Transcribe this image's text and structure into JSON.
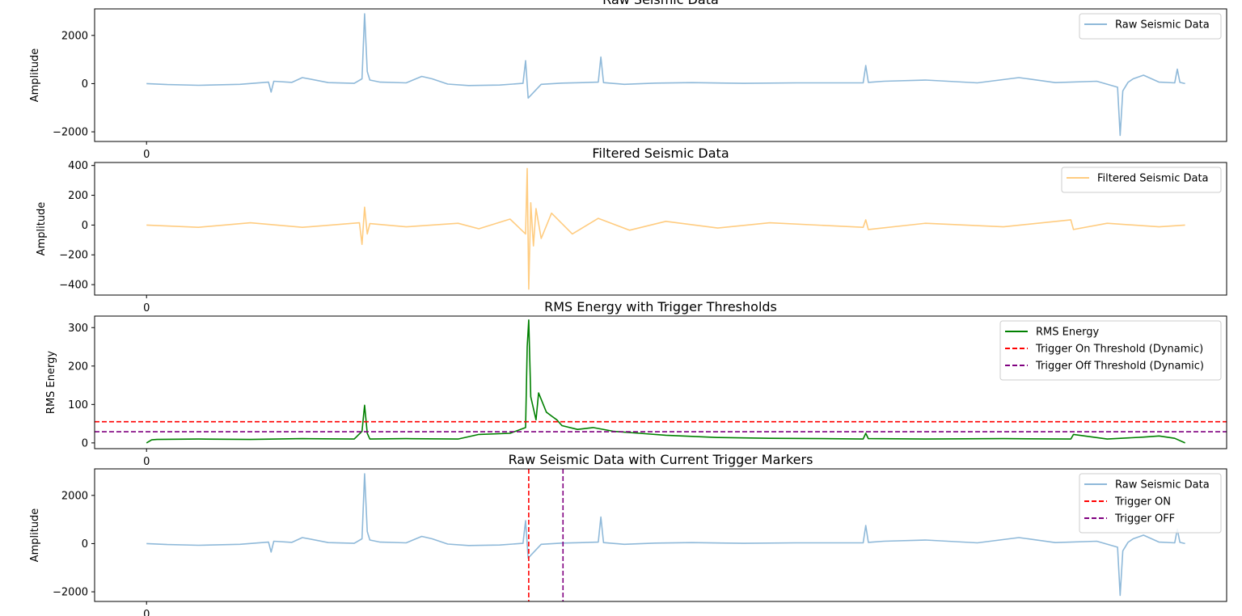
{
  "chart_data": [
    {
      "type": "line",
      "title": "Raw Seismic Data",
      "xlabel": "",
      "ylabel": "Amplitude",
      "xlim": [
        -1000,
        20800
      ],
      "ylim": [
        -2400,
        3100
      ],
      "yticks": [
        -2000,
        0,
        2000
      ],
      "xticks": [
        0
      ],
      "grid": false,
      "legend_position": "top-right",
      "series": [
        {
          "name": "Raw Seismic Data",
          "color": "#8fb9d9",
          "style": "solid",
          "x": [
            0,
            400,
            1000,
            1800,
            2350,
            2400,
            2450,
            2800,
            3000,
            3500,
            4000,
            4150,
            4200,
            4250,
            4300,
            4500,
            5000,
            5300,
            5500,
            5800,
            6200,
            6800,
            7250,
            7300,
            7350,
            7600,
            8000,
            8400,
            8700,
            8750,
            8800,
            9200,
            9800,
            10500,
            11500,
            12500,
            13800,
            13850,
            13900,
            14200,
            15000,
            16000,
            16800,
            17500,
            18300,
            18700,
            18750,
            18800,
            18900,
            19000,
            19200,
            19500,
            19800,
            19850,
            19900,
            20000
          ],
          "y": [
            0,
            -40,
            -70,
            -30,
            60,
            -350,
            100,
            50,
            250,
            40,
            10,
            200,
            2900,
            500,
            150,
            60,
            30,
            300,
            200,
            -20,
            -80,
            -60,
            10,
            950,
            -600,
            -30,
            20,
            40,
            60,
            1100,
            40,
            -30,
            20,
            40,
            10,
            30,
            30,
            750,
            50,
            100,
            150,
            30,
            250,
            40,
            100,
            -150,
            -2150,
            -300,
            50,
            200,
            350,
            60,
            30,
            600,
            50,
            0
          ]
        }
      ]
    },
    {
      "type": "line",
      "title": "Filtered Seismic Data",
      "xlabel": "",
      "ylabel": "Amplitude",
      "xlim": [
        -1000,
        20800
      ],
      "ylim": [
        -470,
        420
      ],
      "yticks": [
        -400,
        -200,
        0,
        200,
        400
      ],
      "xticks": [
        0
      ],
      "grid": false,
      "legend_position": "top-right",
      "series": [
        {
          "name": "Filtered Seismic Data",
          "color": "#ffcc80",
          "style": "solid",
          "x": [
            0,
            1000,
            2000,
            3000,
            4100,
            4150,
            4200,
            4250,
            4300,
            5000,
            6000,
            6400,
            7000,
            7300,
            7330,
            7360,
            7400,
            7450,
            7500,
            7600,
            7800,
            8200,
            8700,
            9300,
            10000,
            11000,
            12000,
            13800,
            13850,
            13900,
            15000,
            16500,
            17800,
            17850,
            18500,
            19500,
            20000
          ],
          "y": [
            0,
            -15,
            15,
            -15,
            15,
            -130,
            120,
            -60,
            10,
            -12,
            12,
            -25,
            40,
            -60,
            380,
            -430,
            150,
            -140,
            110,
            -90,
            80,
            -60,
            45,
            -35,
            25,
            -20,
            15,
            -15,
            35,
            -30,
            12,
            -12,
            35,
            -30,
            12,
            -12,
            0
          ]
        }
      ]
    },
    {
      "type": "line",
      "title": "RMS Energy with Trigger Thresholds",
      "xlabel": "",
      "ylabel": "RMS Energy",
      "xlim": [
        -1000,
        20800
      ],
      "ylim": [
        -15,
        330
      ],
      "yticks": [
        0,
        100,
        200,
        300
      ],
      "xticks": [
        0
      ],
      "grid": false,
      "legend_position": "top-right",
      "series": [
        {
          "name": "RMS Energy",
          "color": "#008000",
          "style": "solid",
          "x": [
            0,
            100,
            200,
            1000,
            2000,
            3000,
            4000,
            4150,
            4200,
            4250,
            4300,
            5000,
            6000,
            6400,
            7000,
            7300,
            7330,
            7360,
            7400,
            7500,
            7550,
            7700,
            7800,
            7900,
            8000,
            8300,
            8600,
            9000,
            9500,
            10000,
            11000,
            12000,
            13000,
            13800,
            13850,
            13900,
            15000,
            16500,
            17800,
            17850,
            18500,
            19200,
            19500,
            19800,
            20000
          ],
          "y": [
            0,
            8,
            9,
            10,
            9,
            11,
            10,
            30,
            98,
            25,
            10,
            11,
            10,
            22,
            25,
            40,
            250,
            320,
            120,
            60,
            130,
            80,
            70,
            60,
            45,
            35,
            40,
            30,
            25,
            20,
            14,
            12,
            11,
            10,
            25,
            11,
            10,
            11,
            10,
            22,
            10,
            15,
            18,
            12,
            0
          ]
        },
        {
          "name": "Trigger On Threshold (Dynamic)",
          "color": "#ff0000",
          "style": "dashed",
          "y_constant": 55
        },
        {
          "name": "Trigger Off Threshold (Dynamic)",
          "color": "#800080",
          "style": "dashed",
          "y_constant": 29
        }
      ]
    },
    {
      "type": "line",
      "title": "Raw Seismic Data with Current Trigger Markers",
      "xlabel": "",
      "ylabel": "Amplitude",
      "xlim": [
        -1000,
        20800
      ],
      "ylim": [
        -2400,
        3100
      ],
      "yticks": [
        -2000,
        0,
        2000
      ],
      "xticks": [
        0
      ],
      "grid": false,
      "legend_position": "top-right",
      "series": [
        {
          "name": "Raw Seismic Data",
          "color": "#8fb9d9",
          "style": "solid",
          "x": [
            0,
            400,
            1000,
            1800,
            2350,
            2400,
            2450,
            2800,
            3000,
            3500,
            4000,
            4150,
            4200,
            4250,
            4300,
            4500,
            5000,
            5300,
            5500,
            5800,
            6200,
            6800,
            7250,
            7300,
            7350,
            7600,
            8000,
            8400,
            8700,
            8750,
            8800,
            9200,
            9800,
            10500,
            11500,
            12500,
            13800,
            13850,
            13900,
            14200,
            15000,
            16000,
            16800,
            17500,
            18300,
            18700,
            18750,
            18800,
            18900,
            19000,
            19200,
            19500,
            19800,
            19850,
            19900,
            20000
          ],
          "y": [
            0,
            -40,
            -70,
            -30,
            60,
            -350,
            100,
            50,
            250,
            40,
            10,
            200,
            2900,
            500,
            150,
            60,
            30,
            300,
            200,
            -20,
            -80,
            -60,
            10,
            950,
            -600,
            -30,
            20,
            40,
            60,
            1100,
            40,
            -30,
            20,
            40,
            10,
            30,
            30,
            750,
            50,
            100,
            150,
            30,
            250,
            40,
            100,
            -150,
            -2150,
            -300,
            50,
            200,
            350,
            60,
            30,
            600,
            50,
            0
          ]
        },
        {
          "name": "Trigger ON",
          "color": "#ff0000",
          "style": "dashed",
          "x_constant": 7360
        },
        {
          "name": "Trigger OFF",
          "color": "#800080",
          "style": "dashed",
          "x_constant": 8020
        }
      ]
    }
  ]
}
